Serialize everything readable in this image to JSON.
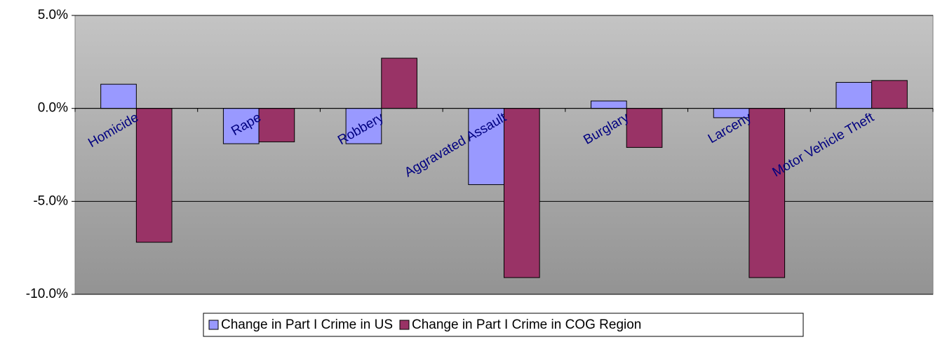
{
  "chart_data": {
    "type": "bar",
    "categories": [
      "Homicide",
      "Rape",
      "Robbery",
      "Aggravated Assault",
      "Burglary",
      "Larceny",
      "Motor Vehicle Theft"
    ],
    "series": [
      {
        "name": "Change in Part I Crime in US",
        "color": "#9999ff",
        "values": [
          1.3,
          -1.9,
          -1.9,
          -4.1,
          0.4,
          -0.5,
          1.4
        ]
      },
      {
        "name": "Change in Part I Crime in COG Region",
        "color": "#993366",
        "values": [
          -7.2,
          -1.8,
          2.7,
          -9.1,
          -2.1,
          -9.1,
          1.5
        ]
      }
    ],
    "ylim": [
      -10,
      5
    ],
    "yticks": [
      {
        "value": -10,
        "label": "-10.0%"
      },
      {
        "value": -5,
        "label": "-5.0%"
      },
      {
        "value": 0,
        "label": "0.0%"
      },
      {
        "value": 5,
        "label": "5.0%"
      }
    ],
    "grid": true,
    "legend": "bottom"
  }
}
